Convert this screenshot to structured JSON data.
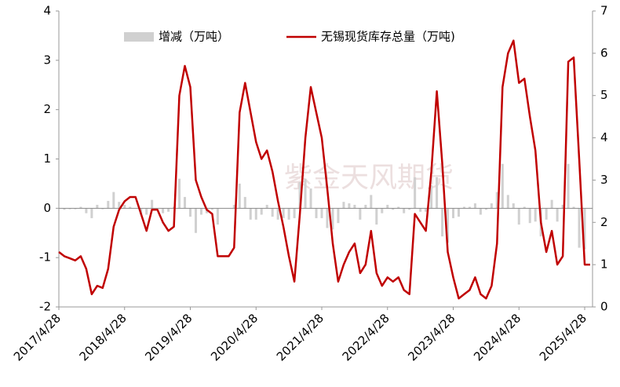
{
  "chart_data": {
    "type": "combo",
    "watermark": "紫金天风期货",
    "categories": [
      "2017/4/28",
      null,
      null,
      null,
      null,
      null,
      null,
      null,
      null,
      null,
      null,
      null,
      "2018/4/28",
      null,
      null,
      null,
      null,
      null,
      null,
      null,
      null,
      null,
      null,
      null,
      "2019/4/28",
      null,
      null,
      null,
      null,
      null,
      null,
      null,
      null,
      null,
      null,
      null,
      "2020/4/28",
      null,
      null,
      null,
      null,
      null,
      null,
      null,
      null,
      null,
      null,
      null,
      "2021/4/28",
      null,
      null,
      null,
      null,
      null,
      null,
      null,
      null,
      null,
      null,
      null,
      "2022/4/28",
      null,
      null,
      null,
      null,
      null,
      null,
      null,
      null,
      null,
      null,
      null,
      "2023/4/28",
      null,
      null,
      null,
      null,
      null,
      null,
      null,
      null,
      null,
      null,
      null,
      "2024/4/28",
      null,
      null,
      null,
      null,
      null,
      null,
      null,
      null,
      null,
      null,
      null,
      "2025/4/28",
      null
    ],
    "series": [
      {
        "name": "增减（万吨）",
        "type": "bar",
        "color": "#d0d0d0",
        "values": [
          0,
          -0.03,
          -0.02,
          -0.02,
          0.03,
          -0.1,
          -0.2,
          0.07,
          -0.02,
          0.15,
          0.33,
          0.13,
          0.07,
          0.03,
          0,
          -0.13,
          -0.13,
          0.17,
          0,
          -0.1,
          -0.07,
          0.03,
          0.6,
          0.23,
          -0.17,
          -0.5,
          -0.13,
          -0.1,
          -0.03,
          -0.33,
          0,
          0,
          0.07,
          0.5,
          0.23,
          -0.23,
          -0.23,
          -0.13,
          0.07,
          -0.17,
          -0.23,
          -0.2,
          -0.23,
          -0.2,
          0.53,
          0.6,
          0.4,
          -0.2,
          -0.2,
          -0.4,
          -0.43,
          -0.3,
          0.13,
          0.1,
          0.07,
          -0.23,
          0.07,
          0.27,
          -0.33,
          -0.1,
          0.07,
          -0.03,
          0.03,
          -0.1,
          -0.03,
          0.63,
          -0.07,
          -0.07,
          0.47,
          0.63,
          -0.57,
          -0.7,
          -0.2,
          -0.17,
          0.03,
          0.03,
          0.1,
          -0.13,
          -0.03,
          0.1,
          0.33,
          0.9,
          0.27,
          0.1,
          -0.33,
          0.03,
          -0.3,
          -0.27,
          -0.57,
          -0.23,
          0.17,
          -0.27,
          0.07,
          0.9,
          0.03,
          -0.8,
          -0.83,
          0
        ]
      },
      {
        "name": "无锡现货库存总量（万吨)",
        "type": "line",
        "axis": "y2",
        "color": "#c00000",
        "values": [
          1.3,
          1.2,
          1.15,
          1.1,
          1.2,
          0.9,
          0.3,
          0.5,
          0.45,
          0.9,
          1.9,
          2.3,
          2.5,
          2.6,
          2.6,
          2.2,
          1.8,
          2.3,
          2.3,
          2.0,
          1.8,
          1.9,
          5.0,
          5.7,
          5.2,
          3.0,
          2.6,
          2.3,
          2.2,
          1.2,
          1.2,
          1.2,
          1.4,
          4.6,
          5.3,
          4.6,
          3.9,
          3.5,
          3.7,
          3.2,
          2.5,
          1.9,
          1.2,
          0.6,
          2.2,
          4.0,
          5.2,
          4.6,
          4.0,
          2.8,
          1.5,
          0.6,
          1.0,
          1.3,
          1.5,
          0.8,
          1.0,
          1.8,
          0.8,
          0.5,
          0.7,
          0.6,
          0.7,
          0.4,
          0.3,
          2.2,
          2.0,
          1.8,
          3.2,
          5.1,
          3.4,
          1.3,
          0.7,
          0.2,
          0.3,
          0.4,
          0.7,
          0.3,
          0.2,
          0.5,
          1.5,
          5.2,
          6.0,
          6.3,
          5.3,
          5.4,
          4.5,
          3.7,
          2.0,
          1.3,
          1.8,
          1.0,
          1.2,
          5.8,
          5.9,
          3.5,
          1.0,
          1.0
        ]
      }
    ],
    "ylim": [
      -2,
      4
    ],
    "yticks": [
      -2,
      -1,
      0,
      1,
      2,
      3,
      4
    ],
    "y2lim": [
      0,
      7
    ],
    "y2ticks": [
      0,
      1,
      2,
      3,
      4,
      5,
      6,
      7
    ]
  }
}
